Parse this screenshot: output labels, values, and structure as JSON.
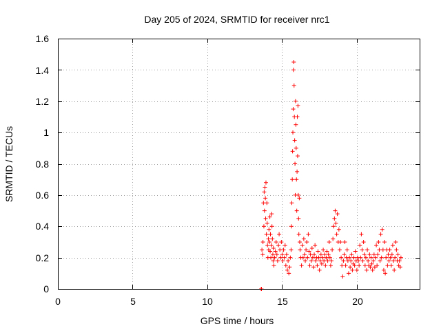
{
  "chart_data": {
    "type": "scatter",
    "title": "Day 205 of 2024, SRMTID for receiver nrc1",
    "xlabel": "GPS time / hours",
    "ylabel": "SRMTID / TECUs",
    "xlim": [
      0,
      24.2
    ],
    "ylim": [
      0,
      1.6
    ],
    "x_ticks": [
      "0",
      "5",
      "10",
      "15",
      "20"
    ],
    "y_ticks": [
      "0",
      "0.2",
      "0.4",
      "0.6",
      "0.8",
      "1",
      "1.2",
      "1.4",
      "1.6"
    ],
    "grid": true,
    "marker": "plus",
    "color": "#ff0000",
    "series": [
      {
        "name": "nrc1",
        "points": [
          [
            13.6,
            0.0
          ],
          [
            13.62,
            0.0
          ],
          [
            13.65,
            0.25
          ],
          [
            13.7,
            0.22
          ],
          [
            13.72,
            0.3
          ],
          [
            13.75,
            0.55
          ],
          [
            13.78,
            0.4
          ],
          [
            13.8,
            0.62
          ],
          [
            13.82,
            0.5
          ],
          [
            13.85,
            0.65
          ],
          [
            13.88,
            0.58
          ],
          [
            13.9,
            0.45
          ],
          [
            13.92,
            0.68
          ],
          [
            13.95,
            0.35
          ],
          [
            13.98,
            0.55
          ],
          [
            14.0,
            0.42
          ],
          [
            14.02,
            0.28
          ],
          [
            14.05,
            0.2
          ],
          [
            14.08,
            0.32
          ],
          [
            14.1,
            0.25
          ],
          [
            14.12,
            0.38
          ],
          [
            14.15,
            0.3
          ],
          [
            14.18,
            0.46
          ],
          [
            14.2,
            0.24
          ],
          [
            14.22,
            0.35
          ],
          [
            14.25,
            0.2
          ],
          [
            14.28,
            0.28
          ],
          [
            14.3,
            0.48
          ],
          [
            14.32,
            0.4
          ],
          [
            14.35,
            0.32
          ],
          [
            14.38,
            0.22
          ],
          [
            14.4,
            0.18
          ],
          [
            14.42,
            0.26
          ],
          [
            14.45,
            0.15
          ],
          [
            14.5,
            0.2
          ],
          [
            14.55,
            0.24
          ],
          [
            14.6,
            0.3
          ],
          [
            14.65,
            0.22
          ],
          [
            14.7,
            0.18
          ],
          [
            14.75,
            0.28
          ],
          [
            14.8,
            0.35
          ],
          [
            14.85,
            0.25
          ],
          [
            14.9,
            0.2
          ],
          [
            14.95,
            0.3
          ],
          [
            15.0,
            0.22
          ],
          [
            15.05,
            0.18
          ],
          [
            15.1,
            0.25
          ],
          [
            15.15,
            0.2
          ],
          [
            15.2,
            0.28
          ],
          [
            15.25,
            0.15
          ],
          [
            15.3,
            0.22
          ],
          [
            15.35,
            0.12
          ],
          [
            15.4,
            0.18
          ],
          [
            15.45,
            0.1
          ],
          [
            15.5,
            0.14
          ],
          [
            15.55,
            0.2
          ],
          [
            15.6,
            0.25
          ],
          [
            15.62,
            0.4
          ],
          [
            15.65,
            0.55
          ],
          [
            15.68,
            0.7
          ],
          [
            15.7,
            0.88
          ],
          [
            15.72,
            1.0
          ],
          [
            15.74,
            1.15
          ],
          [
            15.76,
            1.4
          ],
          [
            15.78,
            1.45
          ],
          [
            15.8,
            1.3
          ],
          [
            15.82,
            1.1
          ],
          [
            15.84,
            0.95
          ],
          [
            15.86,
            0.8
          ],
          [
            15.88,
            0.6
          ],
          [
            15.9,
            1.2
          ],
          [
            15.92,
            1.05
          ],
          [
            15.94,
            0.9
          ],
          [
            15.96,
            0.7
          ],
          [
            15.98,
            0.5
          ],
          [
            16.0,
            0.75
          ],
          [
            16.02,
            1.1
          ],
          [
            16.04,
            0.85
          ],
          [
            16.06,
            1.17
          ],
          [
            16.08,
            0.6
          ],
          [
            16.1,
            0.45
          ],
          [
            16.12,
            0.35
          ],
          [
            16.15,
            0.58
          ],
          [
            16.18,
            0.3
          ],
          [
            16.2,
            0.25
          ],
          [
            16.25,
            0.2
          ],
          [
            16.3,
            0.15
          ],
          [
            16.35,
            0.28
          ],
          [
            16.4,
            0.2
          ],
          [
            16.45,
            0.32
          ],
          [
            16.5,
            0.22
          ],
          [
            16.55,
            0.18
          ],
          [
            16.6,
            0.25
          ],
          [
            16.65,
            0.3
          ],
          [
            16.7,
            0.2
          ],
          [
            16.75,
            0.35
          ],
          [
            16.8,
            0.24
          ],
          [
            16.85,
            0.15
          ],
          [
            16.9,
            0.22
          ],
          [
            16.95,
            0.18
          ],
          [
            17.0,
            0.26
          ],
          [
            17.05,
            0.2
          ],
          [
            17.1,
            0.14
          ],
          [
            17.15,
            0.22
          ],
          [
            17.2,
            0.28
          ],
          [
            17.25,
            0.18
          ],
          [
            17.3,
            0.2
          ],
          [
            17.35,
            0.15
          ],
          [
            17.4,
            0.24
          ],
          [
            17.45,
            0.2
          ],
          [
            17.5,
            0.12
          ],
          [
            17.55,
            0.18
          ],
          [
            17.6,
            0.22
          ],
          [
            17.65,
            0.16
          ],
          [
            17.7,
            0.2
          ],
          [
            17.75,
            0.25
          ],
          [
            17.8,
            0.18
          ],
          [
            17.85,
            0.22
          ],
          [
            17.9,
            0.15
          ],
          [
            17.95,
            0.2
          ],
          [
            18.0,
            0.24
          ],
          [
            18.05,
            0.18
          ],
          [
            18.1,
            0.22
          ],
          [
            18.15,
            0.3
          ],
          [
            18.2,
            0.2
          ],
          [
            18.25,
            0.15
          ],
          [
            18.3,
            0.18
          ],
          [
            18.35,
            0.25
          ],
          [
            18.4,
            0.32
          ],
          [
            18.45,
            0.4
          ],
          [
            18.5,
            0.45
          ],
          [
            18.55,
            0.5
          ],
          [
            18.6,
            0.42
          ],
          [
            18.65,
            0.35
          ],
          [
            18.7,
            0.48
          ],
          [
            18.75,
            0.3
          ],
          [
            18.8,
            0.38
          ],
          [
            18.85,
            0.25
          ],
          [
            18.9,
            0.3
          ],
          [
            18.95,
            0.2
          ],
          [
            19.0,
            0.15
          ],
          [
            19.05,
            0.08
          ],
          [
            19.1,
            0.18
          ],
          [
            19.15,
            0.22
          ],
          [
            19.2,
            0.3
          ],
          [
            19.25,
            0.15
          ],
          [
            19.3,
            0.2
          ],
          [
            19.35,
            0.25
          ],
          [
            19.4,
            0.18
          ],
          [
            19.45,
            0.1
          ],
          [
            19.5,
            0.2
          ],
          [
            19.55,
            0.14
          ],
          [
            19.6,
            0.18
          ],
          [
            19.65,
            0.22
          ],
          [
            19.7,
            0.12
          ],
          [
            19.75,
            0.16
          ],
          [
            19.8,
            0.2
          ],
          [
            19.85,
            0.15
          ],
          [
            19.9,
            0.24
          ],
          [
            19.95,
            0.18
          ],
          [
            20.0,
            0.12
          ],
          [
            20.05,
            0.2
          ],
          [
            20.1,
            0.18
          ],
          [
            20.15,
            0.15
          ],
          [
            20.2,
            0.28
          ],
          [
            20.25,
            0.2
          ],
          [
            20.3,
            0.35
          ],
          [
            20.35,
            0.25
          ],
          [
            20.4,
            0.18
          ],
          [
            20.45,
            0.3
          ],
          [
            20.5,
            0.22
          ],
          [
            20.55,
            0.15
          ],
          [
            20.6,
            0.2
          ],
          [
            20.65,
            0.12
          ],
          [
            20.7,
            0.25
          ],
          [
            20.75,
            0.18
          ],
          [
            20.8,
            0.15
          ],
          [
            20.85,
            0.22
          ],
          [
            20.9,
            0.14
          ],
          [
            20.95,
            0.2
          ],
          [
            21.0,
            0.16
          ],
          [
            21.05,
            0.12
          ],
          [
            21.1,
            0.18
          ],
          [
            21.15,
            0.22
          ],
          [
            21.2,
            0.14
          ],
          [
            21.25,
            0.2
          ],
          [
            21.3,
            0.28
          ],
          [
            21.35,
            0.15
          ],
          [
            21.4,
            0.22
          ],
          [
            21.45,
            0.3
          ],
          [
            21.5,
            0.25
          ],
          [
            21.55,
            0.18
          ],
          [
            21.6,
            0.35
          ],
          [
            21.65,
            0.2
          ],
          [
            21.7,
            0.38
          ],
          [
            21.75,
            0.25
          ],
          [
            21.8,
            0.12
          ],
          [
            21.85,
            0.3
          ],
          [
            21.9,
            0.1
          ],
          [
            21.95,
            0.2
          ],
          [
            22.0,
            0.25
          ],
          [
            22.05,
            0.15
          ],
          [
            22.1,
            0.22
          ],
          [
            22.15,
            0.18
          ],
          [
            22.2,
            0.25
          ],
          [
            22.25,
            0.2
          ],
          [
            22.3,
            0.15
          ],
          [
            22.35,
            0.22
          ],
          [
            22.4,
            0.28
          ],
          [
            22.45,
            0.18
          ],
          [
            22.5,
            0.12
          ],
          [
            22.55,
            0.2
          ],
          [
            22.6,
            0.3
          ],
          [
            22.65,
            0.25
          ],
          [
            22.7,
            0.18
          ],
          [
            22.75,
            0.22
          ],
          [
            22.8,
            0.15
          ],
          [
            22.85,
            0.18
          ],
          [
            22.9,
            0.14
          ],
          [
            22.95,
            0.2
          ]
        ]
      }
    ]
  }
}
